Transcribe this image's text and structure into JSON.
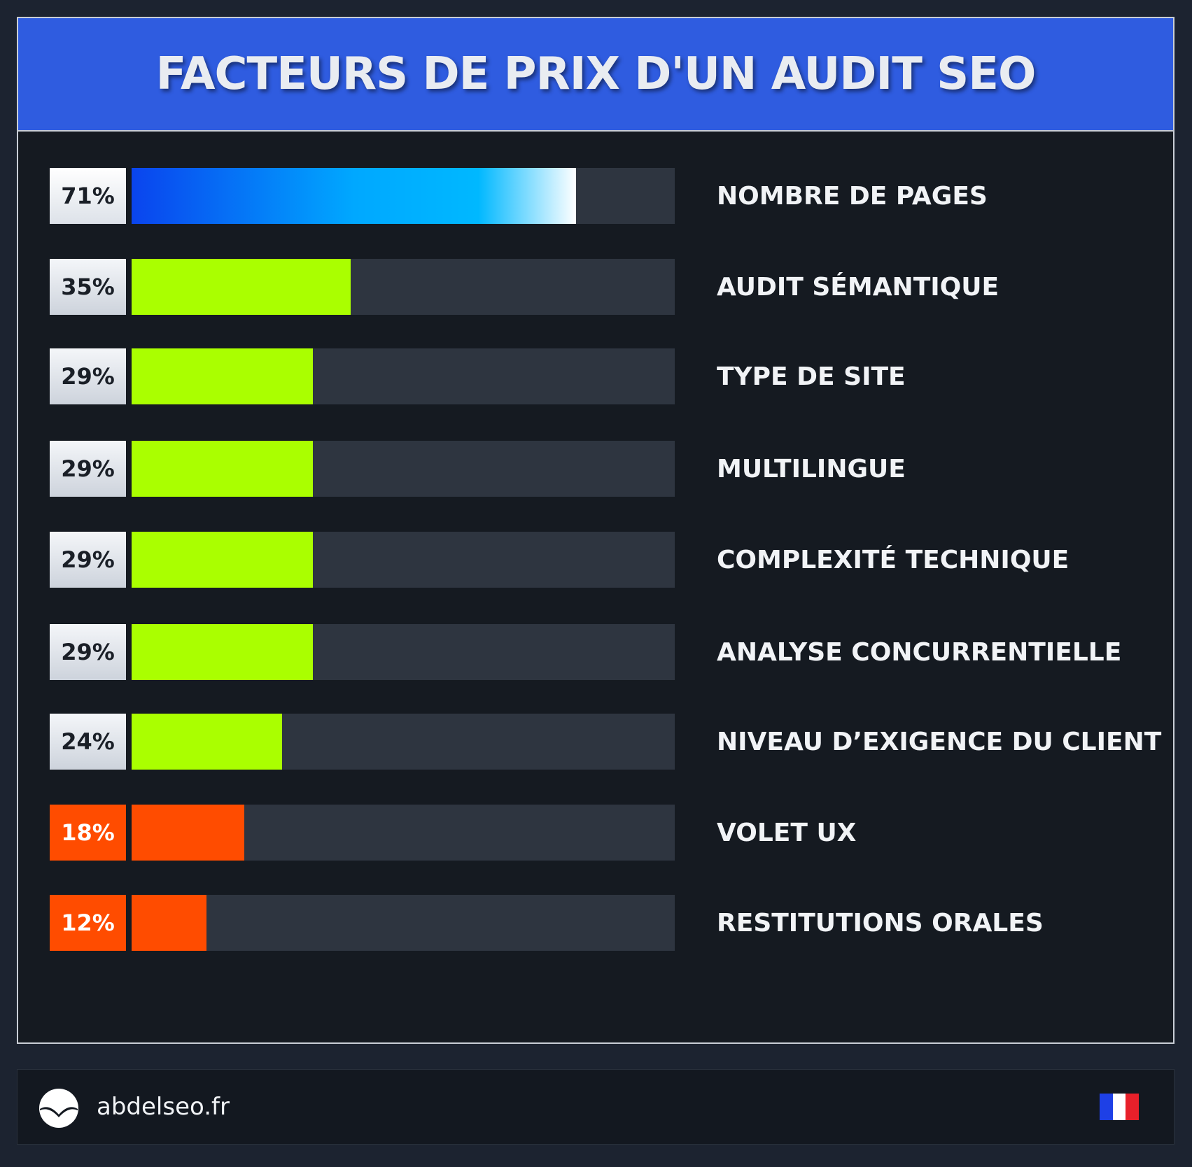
{
  "header": {
    "title": "FACTEURS DE PRIX D'UN AUDIT SEO"
  },
  "chart_data": {
    "type": "bar",
    "orientation": "horizontal",
    "title": "FACTEURS DE PRIX D'UN AUDIT SEO",
    "categories": [
      "NOMBRE DE PAGES",
      "AUDIT SÉMANTIQUE",
      "TYPE DE SITE",
      "MULTILINGUE",
      "COMPLEXITÉ TECHNIQUE",
      "ANALYSE CONCURRENTIELLE",
      "NIVEAU D’EXIGENCE DU CLIENT",
      "VOLET UX",
      "RESTITUTIONS ORALES"
    ],
    "values": [
      71,
      35,
      29,
      29,
      29,
      29,
      24,
      18,
      12
    ],
    "value_labels": [
      "71%",
      "35%",
      "29%",
      "29%",
      "29%",
      "29%",
      "24%",
      "18%",
      "12%"
    ],
    "xlim": [
      0,
      100
    ],
    "grid": false,
    "legend": "none",
    "colors": {
      "top": "#00aaff",
      "medium": "#aaff00",
      "low": "#ff4c00"
    },
    "tiers": [
      "top",
      "medium",
      "medium",
      "medium",
      "medium",
      "medium",
      "medium",
      "low",
      "low"
    ]
  },
  "footer": {
    "site": "abdelseo.fr",
    "logo_icon": "wave-circle-icon",
    "flag_icon": "france-flag-icon",
    "flag_colors": [
      "#1e40e6",
      "#ffffff",
      "#e8202a"
    ]
  }
}
